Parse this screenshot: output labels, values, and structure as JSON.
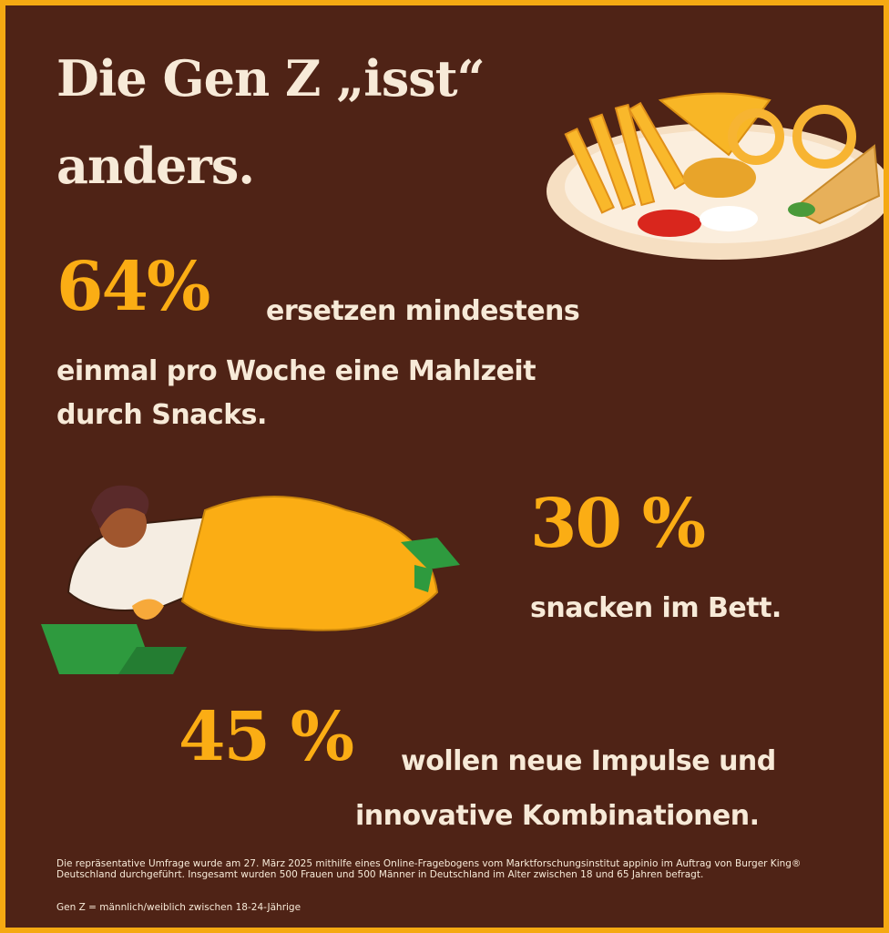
{
  "title": [
    "Die Gen Z „isst“",
    "anders."
  ],
  "stats": [
    {
      "figure": "64%",
      "text": [
        "ersetzen mindestens",
        "einmal pro Woche eine Mahlzeit",
        "durch Snacks."
      ]
    },
    {
      "figure": "30 %",
      "text": [
        "snacken im Bett."
      ]
    },
    {
      "figure": "45 %",
      "text": [
        "wollen neue Impulse und",
        "innovative Kombinationen."
      ]
    }
  ],
  "footnote": [
    "Die repräsentative Umfrage wurde am 27. März 2025 mithilfe eines Online-Fragebogens vom Marktforschungsinstitut appinio im Auftrag von Burger King®",
    "Deutschland durchgeführt. Insgesamt wurden 500 Frauen und 500 Männer in Deutschland im Alter zwischen 18 und 65 Jahren befragt."
  ],
  "definition": "Gen Z = männlich/weiblich zwischen 18-24-Jährige"
}
